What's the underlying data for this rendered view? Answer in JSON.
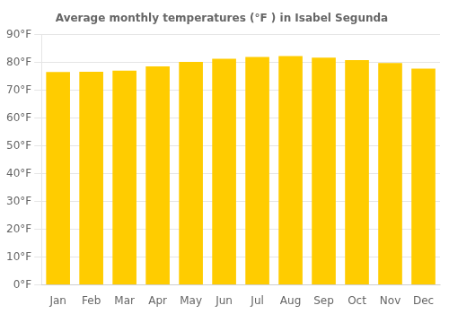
{
  "chart_data": {
    "type": "bar",
    "title": "Average monthly temperatures (°F ) in Isabel Segunda",
    "categories": [
      "Jan",
      "Feb",
      "Mar",
      "Apr",
      "May",
      "Jun",
      "Jul",
      "Aug",
      "Sep",
      "Oct",
      "Nov",
      "Dec"
    ],
    "values": [
      76.5,
      76.6,
      77.0,
      78.5,
      80.1,
      81.3,
      81.9,
      82.2,
      81.7,
      80.8,
      79.7,
      77.7
    ],
    "color": "#FFCC00",
    "ylim": [
      0,
      90
    ],
    "yticks": [
      {
        "value": 0,
        "label": "0°F"
      },
      {
        "value": 10,
        "label": "10°F"
      },
      {
        "value": 20,
        "label": "20°F"
      },
      {
        "value": 30,
        "label": "30°F"
      },
      {
        "value": 40,
        "label": "40°F"
      },
      {
        "value": 50,
        "label": "50°F"
      },
      {
        "value": 60,
        "label": "60°F"
      },
      {
        "value": 70,
        "label": "70°F"
      },
      {
        "value": 80,
        "label": "80°F"
      },
      {
        "value": 90,
        "label": "90°F"
      }
    ],
    "grid": true
  }
}
